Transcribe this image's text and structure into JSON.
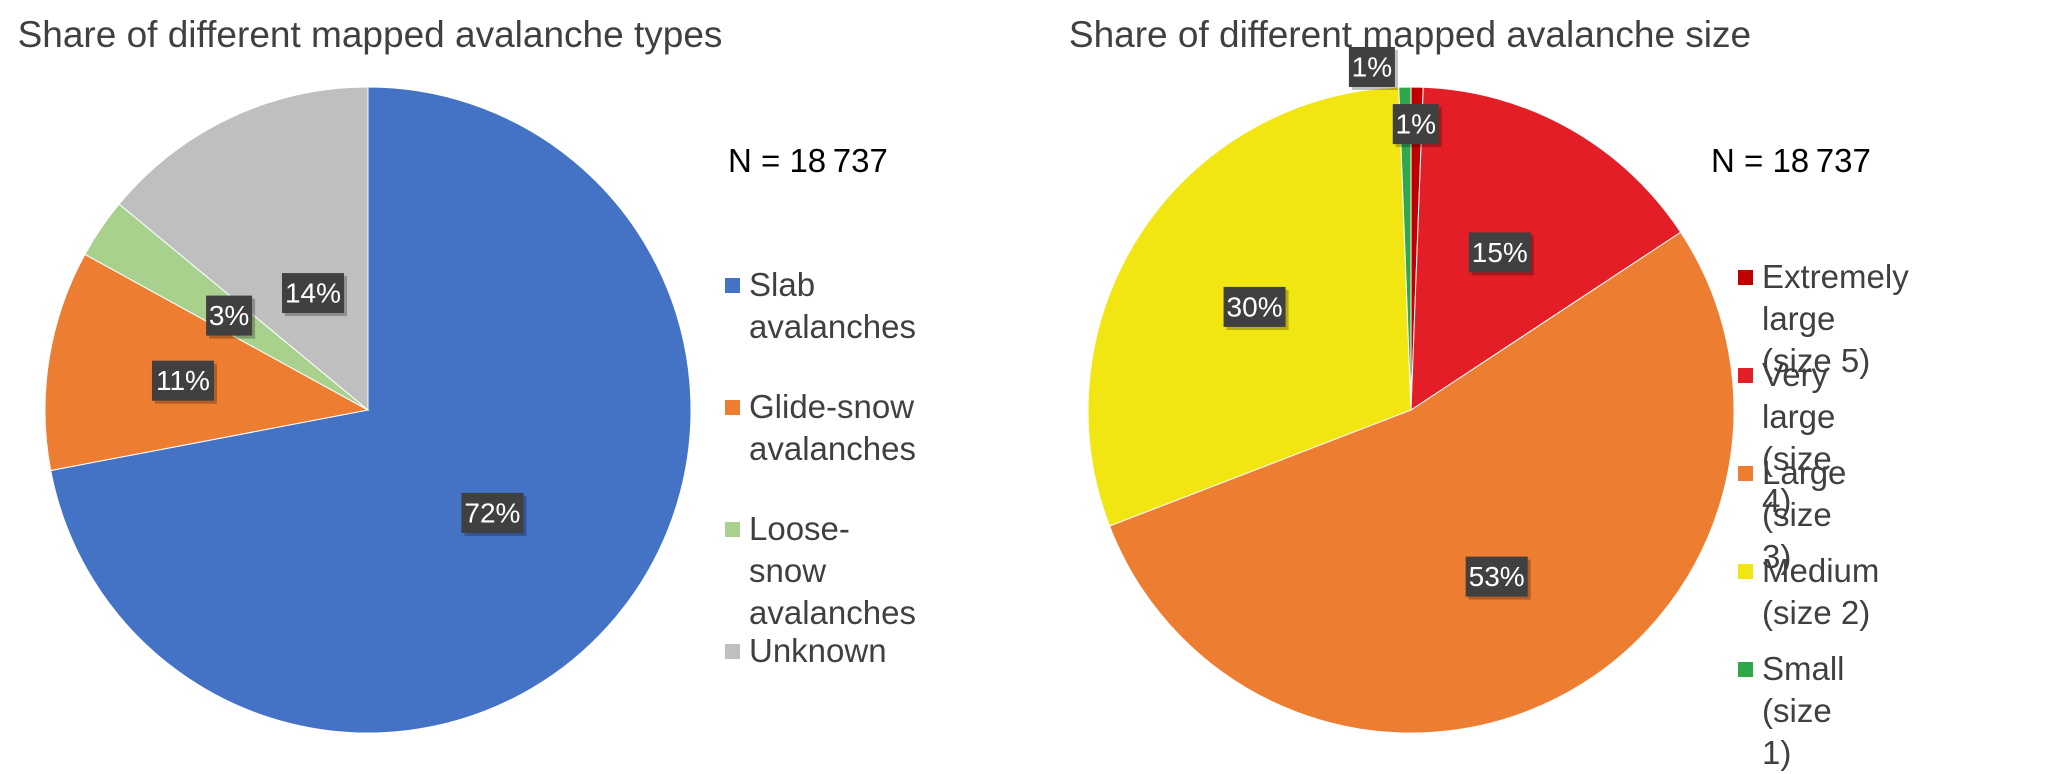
{
  "chart_data": [
    {
      "type": "pie",
      "title": "Share of different mapped avalanche types",
      "annotation": "N = 18 737",
      "legend_position": "right",
      "slices": [
        {
          "name": "Slab avalanches",
          "value": 72,
          "label": "72%",
          "color": "#4472C4"
        },
        {
          "name": "Glide-snow\navalanches",
          "value": 11,
          "label": "11%",
          "color": "#ED7D31"
        },
        {
          "name": "Loose-snow\navalanches",
          "value": 3,
          "label": "3%",
          "color": "#A9D18E"
        },
        {
          "name": "Unknown",
          "value": 14,
          "label": "14%",
          "color": "#BFBFBF"
        }
      ]
    },
    {
      "type": "pie",
      "title": "Share of different mapped avalanche size",
      "annotation": "N = 18 737",
      "legend_position": "right",
      "slices": [
        {
          "name": "Extremely large\n(size 5)",
          "value": 0.6,
          "label": "1%",
          "color": "#C00000"
        },
        {
          "name": "Very large (size 4)",
          "value": 15,
          "label": "15%",
          "color": "#E41E26"
        },
        {
          "name": "Large  (size 3)",
          "value": 53,
          "label": "53%",
          "color": "#ED7D31"
        },
        {
          "name": "Medium (size 2)",
          "value": 30,
          "label": "30%",
          "color": "#F2E612"
        },
        {
          "name": "Small (size 1)",
          "value": 0.6,
          "label": "1%",
          "color": "#2EA84A"
        }
      ]
    }
  ]
}
